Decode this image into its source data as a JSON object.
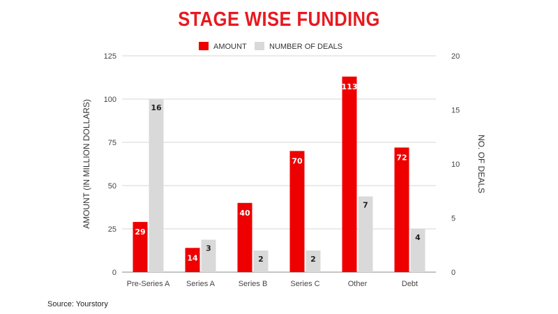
{
  "chart_data": {
    "type": "bar",
    "title": "STAGE WISE FUNDING",
    "categories": [
      "Pre-Series A",
      "Series A",
      "Series B",
      "Series C",
      "Other",
      "Debt"
    ],
    "series": [
      {
        "name": "AMOUNT",
        "axis": "left",
        "color": "#ee0000",
        "values": [
          29,
          14,
          40,
          70,
          113,
          72
        ]
      },
      {
        "name": "NUMBER OF DEALS",
        "axis": "right",
        "color": "#d9d9d9",
        "values": [
          16,
          3,
          2,
          2,
          7,
          4
        ]
      }
    ],
    "ylabel_left": "AMOUNT (IN MILLION DOLLARS)",
    "ylabel_right": "NO. OF DEALS",
    "ylim_left": [
      0,
      125
    ],
    "ylim_right": [
      0,
      20
    ],
    "yticks_left": [
      0,
      25,
      50,
      75,
      100,
      125
    ],
    "yticks_right": [
      0,
      5,
      10,
      15,
      20
    ],
    "grid": true,
    "legend_position": "top-center",
    "source": "Source: Yourstory"
  }
}
